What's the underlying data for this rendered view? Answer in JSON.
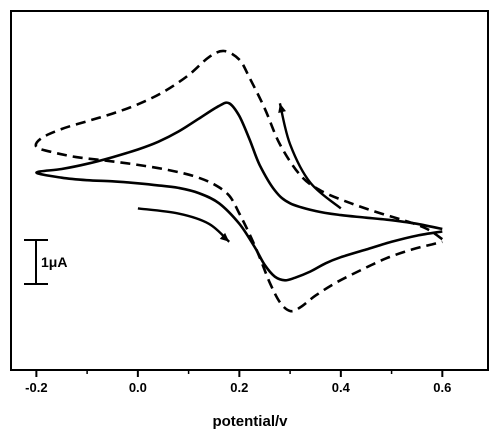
{
  "chart_data": {
    "type": "line",
    "title": "",
    "xlabel": "potential/v",
    "ylabel": "",
    "xlim": [
      -0.25,
      0.69
    ],
    "ylim": [
      -2.8,
      4.2
    ],
    "x_ticks": [
      -0.2,
      0.0,
      0.2,
      0.4,
      0.6
    ],
    "x_tick_labels": [
      "-0.2",
      "0.0",
      "0.2",
      "0.4",
      "0.6"
    ],
    "grid": false,
    "scale_bar": {
      "label": "1μA",
      "value": 1
    },
    "series": [
      {
        "style": "solid",
        "color": "#000000",
        "points": [
          [
            0.6,
            -0.05
          ],
          [
            0.55,
            0.05
          ],
          [
            0.5,
            0.12
          ],
          [
            0.45,
            0.17
          ],
          [
            0.4,
            0.22
          ],
          [
            0.35,
            0.3
          ],
          [
            0.3,
            0.45
          ],
          [
            0.27,
            0.7
          ],
          [
            0.24,
            1.2
          ],
          [
            0.22,
            1.7
          ],
          [
            0.2,
            2.15
          ],
          [
            0.18,
            2.4
          ],
          [
            0.16,
            2.35
          ],
          [
            0.12,
            2.1
          ],
          [
            0.08,
            1.85
          ],
          [
            0.04,
            1.65
          ],
          [
            0.0,
            1.5
          ],
          [
            -0.05,
            1.35
          ],
          [
            -0.1,
            1.22
          ],
          [
            -0.15,
            1.12
          ],
          [
            -0.2,
            1.05
          ],
          [
            -0.15,
            0.95
          ],
          [
            -0.1,
            0.9
          ],
          [
            -0.05,
            0.88
          ],
          [
            0.0,
            0.84
          ],
          [
            0.04,
            0.8
          ],
          [
            0.08,
            0.75
          ],
          [
            0.12,
            0.65
          ],
          [
            0.16,
            0.45
          ],
          [
            0.2,
            0.05
          ],
          [
            0.23,
            -0.4
          ],
          [
            0.25,
            -0.75
          ],
          [
            0.27,
            -0.98
          ],
          [
            0.29,
            -1.05
          ],
          [
            0.31,
            -1.0
          ],
          [
            0.34,
            -0.88
          ],
          [
            0.37,
            -0.72
          ],
          [
            0.4,
            -0.6
          ],
          [
            0.45,
            -0.45
          ],
          [
            0.5,
            -0.3
          ],
          [
            0.55,
            -0.18
          ],
          [
            0.6,
            -0.1
          ]
        ]
      },
      {
        "style": "dashed",
        "color": "#000000",
        "points": [
          [
            0.6,
            -0.25
          ],
          [
            0.57,
            -0.05
          ],
          [
            0.53,
            0.1
          ],
          [
            0.48,
            0.25
          ],
          [
            0.42,
            0.45
          ],
          [
            0.36,
            0.7
          ],
          [
            0.32,
            1.0
          ],
          [
            0.28,
            1.6
          ],
          [
            0.25,
            2.3
          ],
          [
            0.22,
            2.9
          ],
          [
            0.2,
            3.25
          ],
          [
            0.17,
            3.42
          ],
          [
            0.14,
            3.3
          ],
          [
            0.1,
            2.95
          ],
          [
            0.05,
            2.62
          ],
          [
            0.0,
            2.38
          ],
          [
            -0.05,
            2.2
          ],
          [
            -0.1,
            2.05
          ],
          [
            -0.15,
            1.9
          ],
          [
            -0.19,
            1.72
          ],
          [
            -0.2,
            1.55
          ],
          [
            -0.17,
            1.45
          ],
          [
            -0.12,
            1.35
          ],
          [
            -0.06,
            1.28
          ],
          [
            0.0,
            1.2
          ],
          [
            0.06,
            1.1
          ],
          [
            0.11,
            0.98
          ],
          [
            0.15,
            0.82
          ],
          [
            0.18,
            0.6
          ],
          [
            0.2,
            0.25
          ],
          [
            0.22,
            -0.15
          ],
          [
            0.24,
            -0.6
          ],
          [
            0.26,
            -1.1
          ],
          [
            0.28,
            -1.48
          ],
          [
            0.3,
            -1.65
          ],
          [
            0.32,
            -1.58
          ],
          [
            0.35,
            -1.35
          ],
          [
            0.39,
            -1.1
          ],
          [
            0.44,
            -0.85
          ],
          [
            0.49,
            -0.62
          ],
          [
            0.54,
            -0.45
          ],
          [
            0.58,
            -0.35
          ],
          [
            0.6,
            -0.3
          ]
        ]
      }
    ],
    "arrows": [
      {
        "points": [
          [
            0.4,
            0.35
          ],
          [
            0.34,
            0.85
          ],
          [
            0.3,
            1.6
          ],
          [
            0.28,
            2.4
          ]
        ]
      },
      {
        "points": [
          [
            0.0,
            0.35
          ],
          [
            0.08,
            0.25
          ],
          [
            0.14,
            0.05
          ],
          [
            0.18,
            -0.3
          ]
        ]
      }
    ]
  }
}
